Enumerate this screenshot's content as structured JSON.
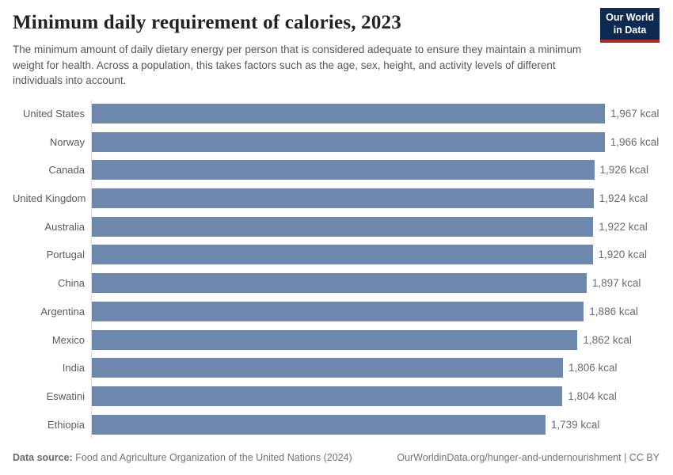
{
  "header": {
    "title": "Minimum daily requirement of calories, 2023",
    "subtitle": "The minimum amount of daily dietary energy per person that is considered adequate to ensure they maintain a minimum weight for health. Across a population, this takes factors such as the age, sex, height, and activity levels of different individuals into account.",
    "logo": {
      "line1": "Our World",
      "line2": "in Data"
    }
  },
  "chart_data": {
    "type": "bar",
    "orientation": "horizontal",
    "title": "Minimum daily requirement of calories, 2023",
    "unit": "kcal",
    "categories": [
      "United States",
      "Norway",
      "Canada",
      "United Kingdom",
      "Australia",
      "Portugal",
      "China",
      "Argentina",
      "Mexico",
      "India",
      "Eswatini",
      "Ethiopia"
    ],
    "values": [
      1967,
      1966,
      1926,
      1924,
      1922,
      1920,
      1897,
      1886,
      1862,
      1806,
      1804,
      1739
    ],
    "value_labels": [
      "1,967 kcal",
      "1,966 kcal",
      "1,926 kcal",
      "1,924 kcal",
      "1,922 kcal",
      "1,920 kcal",
      "1,897 kcal",
      "1,886 kcal",
      "1,862 kcal",
      "1,806 kcal",
      "1,804 kcal",
      "1,739 kcal"
    ],
    "xlim": [
      0,
      1967
    ],
    "grid": false,
    "legend": "none",
    "bar_color": "#6d87ad",
    "axis_line_color": "#dcdcdc"
  },
  "footer": {
    "source_label": "Data source:",
    "source_text": " Food and Agriculture Organization of the United Nations (2024)",
    "link_text": "OurWorldinData.org/hunger-and-undernourishment | CC BY"
  },
  "colors": {
    "bar": "#6d87ad",
    "logo_navy": "#0f2a52",
    "logo_red": "#a52f2f",
    "title_text": "#222222",
    "subtitle_text": "#575757",
    "label_text": "#5b5b5b",
    "value_text": "#6c6c6c"
  }
}
